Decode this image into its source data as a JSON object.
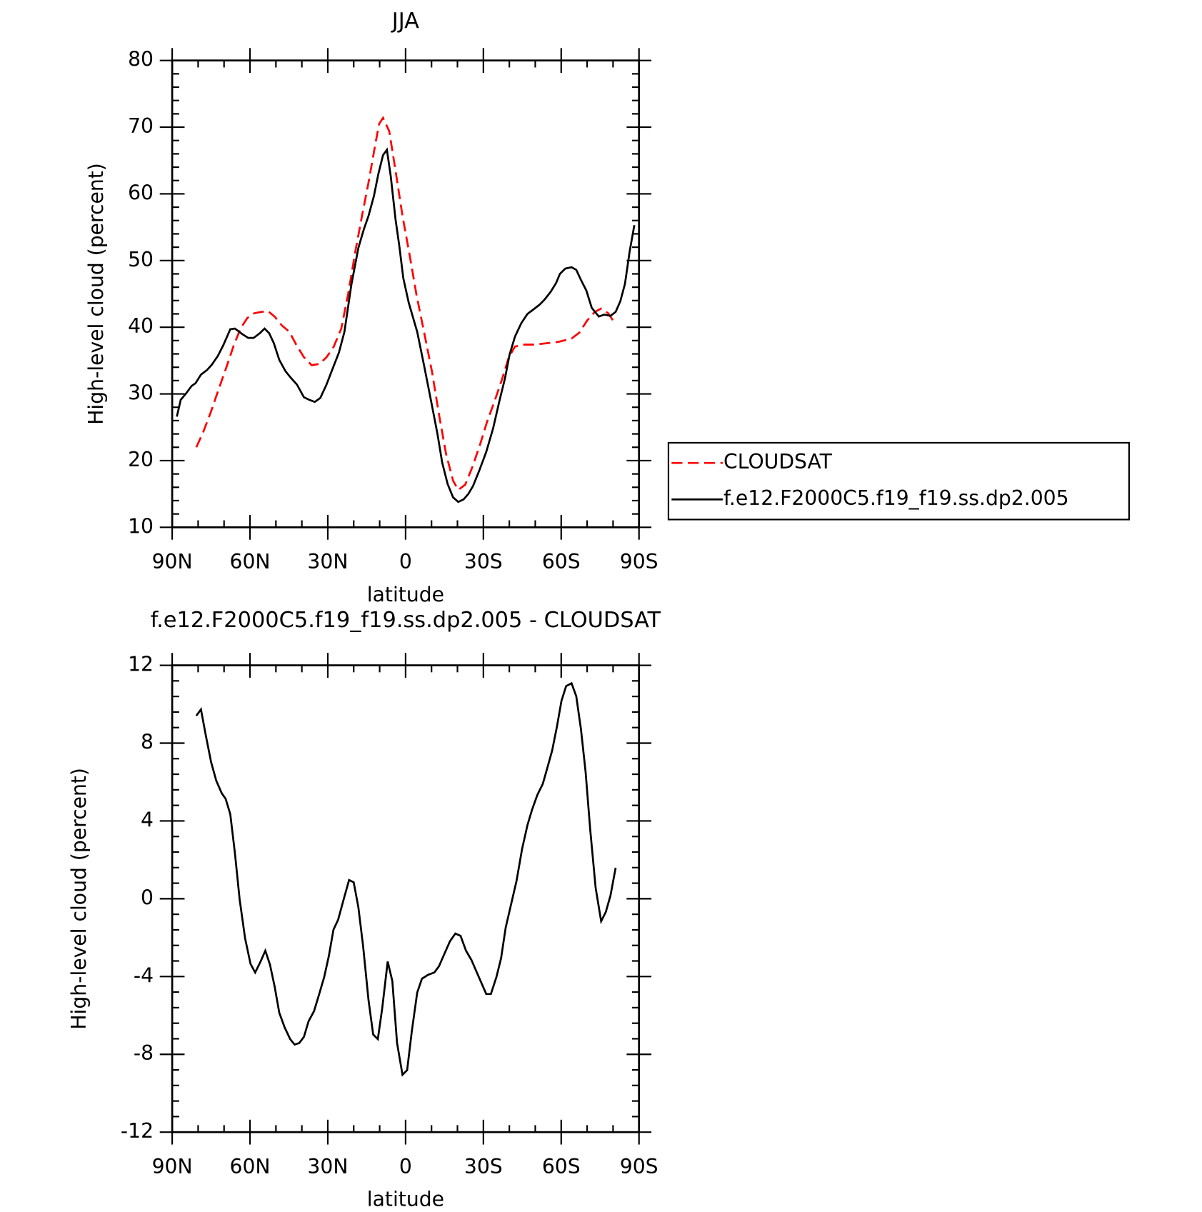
{
  "chart_data": [
    {
      "type": "line",
      "title": "JJA",
      "xlabel": "latitude",
      "ylabel": "High-level cloud (percent)",
      "xlim": [
        90,
        -90
      ],
      "ylim": [
        10,
        80
      ],
      "xticks": [
        {
          "value": 90,
          "label": "90N"
        },
        {
          "value": 60,
          "label": "60N"
        },
        {
          "value": 30,
          "label": "30N"
        },
        0,
        {
          "value": -30,
          "label": "30S"
        },
        {
          "value": -60,
          "label": "60S"
        },
        {
          "value": -90,
          "label": "90S"
        }
      ],
      "yticks": [
        10,
        20,
        30,
        40,
        50,
        60,
        70,
        80
      ],
      "legend": "right",
      "series": [
        {
          "name": "CLOUDSAT",
          "color": "#ff0000",
          "dash": true,
          "x": [
            80.7,
            78.0,
            75.0,
            72.1,
            69.1,
            66.4,
            63.7,
            61.0,
            58.3,
            55.6,
            53.0,
            50.5,
            47.8,
            44.8,
            42.2,
            39.2,
            36.2,
            33.2,
            30.5,
            27.8,
            24.8,
            22.1,
            19.4,
            16.7,
            14.3,
            11.6,
            10.2,
            8.7,
            6.3,
            3.9,
            1.2,
            -1.6,
            -4.2,
            -7.2,
            -10.2,
            -12.9,
            -15.6,
            -18.3,
            -20.3,
            -23.0,
            -25.7,
            -28.7,
            -31.4,
            -34.4,
            -37.1,
            -39.8,
            -42.2,
            -45.8,
            -50.0,
            -54.4,
            -58.9,
            -64.0,
            -67.0,
            -70.0,
            -73.0,
            -75.4,
            -78.1,
            -80.7
          ],
          "values": [
            22.0,
            24.3,
            27.4,
            30.7,
            34.0,
            37.1,
            39.8,
            41.4,
            42.1,
            42.3,
            42.4,
            41.6,
            40.3,
            39.3,
            37.4,
            35.5,
            34.3,
            34.5,
            35.5,
            37.0,
            39.8,
            45.1,
            51.3,
            56.9,
            61.7,
            67.6,
            70.5,
            71.4,
            69.4,
            63.5,
            56.7,
            50.7,
            44.9,
            39.1,
            33.3,
            26.9,
            21.0,
            17.0,
            15.6,
            16.4,
            19.0,
            22.4,
            25.8,
            29.0,
            32.1,
            35.5,
            37.1,
            37.4,
            37.4,
            37.6,
            37.8,
            38.3,
            39.2,
            41.0,
            42.3,
            42.8,
            42.1,
            40.6
          ]
        },
        {
          "name": "f.e12.F2000C5.f19_f19.ss.dp2.005",
          "color": "#000000",
          "dash": false,
          "x": [
            88.2,
            86.7,
            84.6,
            82.5,
            81.0,
            78.9,
            76.5,
            74.7,
            72.4,
            70.3,
            67.6,
            65.8,
            63.1,
            60.7,
            58.6,
            56.2,
            54.4,
            52.6,
            50.8,
            48.7,
            46.3,
            44.2,
            41.9,
            39.2,
            37.1,
            35.0,
            32.9,
            30.5,
            28.1,
            25.7,
            23.6,
            20.9,
            18.2,
            16.1,
            14.3,
            12.2,
            10.5,
            8.7,
            7.2,
            5.7,
            3.9,
            2.4,
            0.9,
            -1.2,
            -4.5,
            -7.2,
            -9.9,
            -12.3,
            -14.1,
            -16.2,
            -18.3,
            -20.3,
            -22.4,
            -24.2,
            -26.0,
            -28.4,
            -31.1,
            -33.8,
            -36.2,
            -38.3,
            -40.1,
            -42.2,
            -44.6,
            -47.0,
            -49.4,
            -51.7,
            -53.5,
            -55.9,
            -58.0,
            -59.5,
            -61.6,
            -64.0,
            -65.8,
            -67.6,
            -69.7,
            -71.8,
            -74.5,
            -76.6,
            -79.0,
            -81.0,
            -82.8,
            -84.6,
            -86.4,
            -88.2
          ],
          "values": [
            26.6,
            29.1,
            30.1,
            31.2,
            31.6,
            32.9,
            33.6,
            34.4,
            35.7,
            37.3,
            39.7,
            39.8,
            39.0,
            38.4,
            38.4,
            39.1,
            39.8,
            39.1,
            37.6,
            35.1,
            33.4,
            32.4,
            31.4,
            29.5,
            29.1,
            28.8,
            29.4,
            31.4,
            33.8,
            36.2,
            39.3,
            46.4,
            51.9,
            54.7,
            56.7,
            59.7,
            63.0,
            65.8,
            66.6,
            62.6,
            56.2,
            52.1,
            47.4,
            43.7,
            39.3,
            34.1,
            28.8,
            24.0,
            19.7,
            16.5,
            14.5,
            13.8,
            14.2,
            15.0,
            16.2,
            18.5,
            21.3,
            24.9,
            29.0,
            32.3,
            35.9,
            38.6,
            40.6,
            42.0,
            42.7,
            43.4,
            44.1,
            45.3,
            46.6,
            48.0,
            48.8,
            49.0,
            48.6,
            47.1,
            45.5,
            42.9,
            41.6,
            41.9,
            41.7,
            42.3,
            43.9,
            46.5,
            51.4,
            55.3
          ]
        }
      ]
    },
    {
      "type": "line",
      "title": "f.e12.F2000C5.f19_f19.ss.dp2.005 - CLOUDSAT",
      "xlabel": "latitude",
      "ylabel": "High-level cloud (percent)",
      "xlim": [
        90,
        -90
      ],
      "ylim": [
        -12,
        12
      ],
      "xticks": [
        {
          "value": 90,
          "label": "90N"
        },
        {
          "value": 60,
          "label": "60N"
        },
        {
          "value": 30,
          "label": "30N"
        },
        0,
        {
          "value": -30,
          "label": "30S"
        },
        {
          "value": -60,
          "label": "60S"
        },
        {
          "value": -90,
          "label": "90S"
        }
      ],
      "yticks": [
        -12,
        -8,
        -4,
        0,
        4,
        8,
        12
      ],
      "color": "#000000",
      "x": [
        80.7,
        78.9,
        77.1,
        75.0,
        73.0,
        70.9,
        69.4,
        67.6,
        65.8,
        64.0,
        61.9,
        59.8,
        58.0,
        55.9,
        54.1,
        52.3,
        50.5,
        48.7,
        46.6,
        44.5,
        42.8,
        41.0,
        39.2,
        37.4,
        35.3,
        33.5,
        31.4,
        29.6,
        27.8,
        26.0,
        23.9,
        21.8,
        20.0,
        18.2,
        16.4,
        14.3,
        12.5,
        10.7,
        9.0,
        6.9,
        5.1,
        3.3,
        1.2,
        -0.6,
        -2.4,
        -4.5,
        -6.3,
        -8.7,
        -11.1,
        -12.9,
        -14.7,
        -17.1,
        -19.2,
        -21.2,
        -23.3,
        -25.4,
        -27.2,
        -29.3,
        -31.1,
        -32.9,
        -35.0,
        -36.8,
        -38.6,
        -40.7,
        -42.8,
        -44.9,
        -47.0,
        -48.8,
        -50.8,
        -52.9,
        -54.7,
        -56.5,
        -58.3,
        -60.1,
        -61.9,
        -64.0,
        -65.8,
        -67.6,
        -69.4,
        -71.2,
        -73.3,
        -75.4,
        -77.2,
        -79.0,
        -81.0
      ],
      "values": [
        9.41,
        9.73,
        8.45,
        7.02,
        6.06,
        5.42,
        5.14,
        4.35,
        2.35,
        -0.04,
        -2.03,
        -3.35,
        -3.79,
        -3.23,
        -2.67,
        -3.39,
        -4.51,
        -5.86,
        -6.62,
        -7.22,
        -7.5,
        -7.42,
        -7.1,
        -6.3,
        -5.78,
        -4.98,
        -4.03,
        -2.95,
        -1.59,
        -1.08,
        -0.04,
        0.96,
        0.84,
        -0.44,
        -2.43,
        -5.22,
        -6.98,
        -7.22,
        -5.62,
        -3.23,
        -4.23,
        -7.42,
        -9.05,
        -8.81,
        -6.82,
        -4.82,
        -4.11,
        -3.91,
        -3.79,
        -3.47,
        -2.91,
        -2.19,
        -1.79,
        -1.91,
        -2.67,
        -3.15,
        -3.71,
        -4.35,
        -4.9,
        -4.9,
        -4.03,
        -3.07,
        -1.48,
        -0.28,
        0.92,
        2.55,
        3.79,
        4.59,
        5.34,
        5.9,
        6.74,
        7.62,
        8.81,
        10.17,
        10.93,
        11.08,
        10.41,
        8.73,
        6.54,
        3.55,
        0.56,
        -1.16,
        -0.68,
        0.16,
        1.59
      ]
    }
  ]
}
